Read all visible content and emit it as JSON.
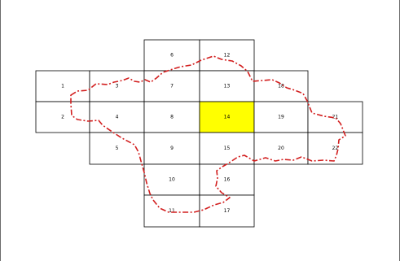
{
  "map": {
    "colors": {
      "background": "#ffffff",
      "cell_fill": "#ffffff",
      "cell_stroke": "#000000",
      "highlight_fill": "#ffff00",
      "boundary_stroke": "#d21e1e"
    },
    "highlighted_cell": "14",
    "boundary_style": "red dash-dot outline",
    "cells": [
      {
        "id": "6",
        "label": "6"
      },
      {
        "id": "12",
        "label": "12"
      },
      {
        "id": "1",
        "label": "1"
      },
      {
        "id": "3",
        "label": "3"
      },
      {
        "id": "7",
        "label": "7"
      },
      {
        "id": "13",
        "label": "13"
      },
      {
        "id": "18",
        "label": "18"
      },
      {
        "id": "2",
        "label": "2"
      },
      {
        "id": "4",
        "label": "4"
      },
      {
        "id": "8",
        "label": "8"
      },
      {
        "id": "14",
        "label": "14"
      },
      {
        "id": "19",
        "label": "19"
      },
      {
        "id": "21",
        "label": "21"
      },
      {
        "id": "5",
        "label": "5"
      },
      {
        "id": "9",
        "label": "9"
      },
      {
        "id": "15",
        "label": "15"
      },
      {
        "id": "20",
        "label": "20"
      },
      {
        "id": "22",
        "label": "22"
      },
      {
        "id": "10",
        "label": "10"
      },
      {
        "id": "16",
        "label": "16"
      },
      {
        "id": "11",
        "label": "11"
      },
      {
        "id": "17",
        "label": "17"
      }
    ]
  }
}
